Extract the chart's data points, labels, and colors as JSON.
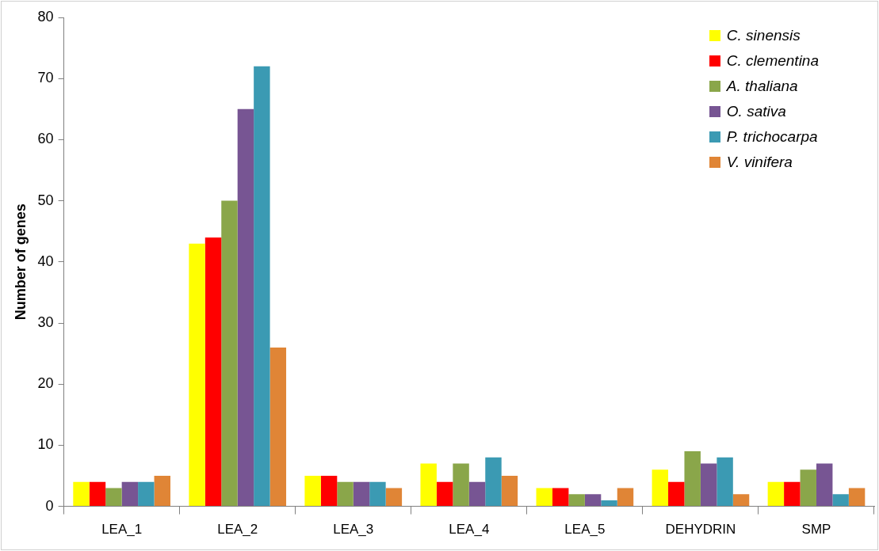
{
  "chart_data": {
    "type": "bar",
    "ylabel": "Number of genes",
    "categories": [
      "LEA_1",
      "LEA_2",
      "LEA_3",
      "LEA_4",
      "LEA_5",
      "DEHYDRIN",
      "SMP"
    ],
    "series": [
      {
        "name": "C. sinensis",
        "color": "#ffff00",
        "values": [
          4,
          43,
          5,
          7,
          3,
          6,
          4
        ]
      },
      {
        "name": "C. clementina",
        "color": "#ff0000",
        "values": [
          4,
          44,
          5,
          4,
          3,
          4,
          4
        ]
      },
      {
        "name": "A. thaliana",
        "color": "#8aa64a",
        "values": [
          3,
          50,
          4,
          7,
          2,
          9,
          6
        ]
      },
      {
        "name": "O. sativa",
        "color": "#775593",
        "values": [
          4,
          65,
          4,
          4,
          2,
          7,
          7
        ]
      },
      {
        "name": "P. trichocarpa",
        "color": "#3b9ab3",
        "values": [
          4,
          72,
          4,
          8,
          1,
          8,
          2
        ]
      },
      {
        "name": "V. vinifera",
        "color": "#e08536",
        "values": [
          5,
          26,
          3,
          5,
          3,
          2,
          3
        ]
      }
    ],
    "ylim": [
      0,
      80
    ],
    "yticks": [
      0,
      10,
      20,
      30,
      40,
      50,
      60,
      70,
      80
    ],
    "grid": false,
    "legend": "top right"
  }
}
